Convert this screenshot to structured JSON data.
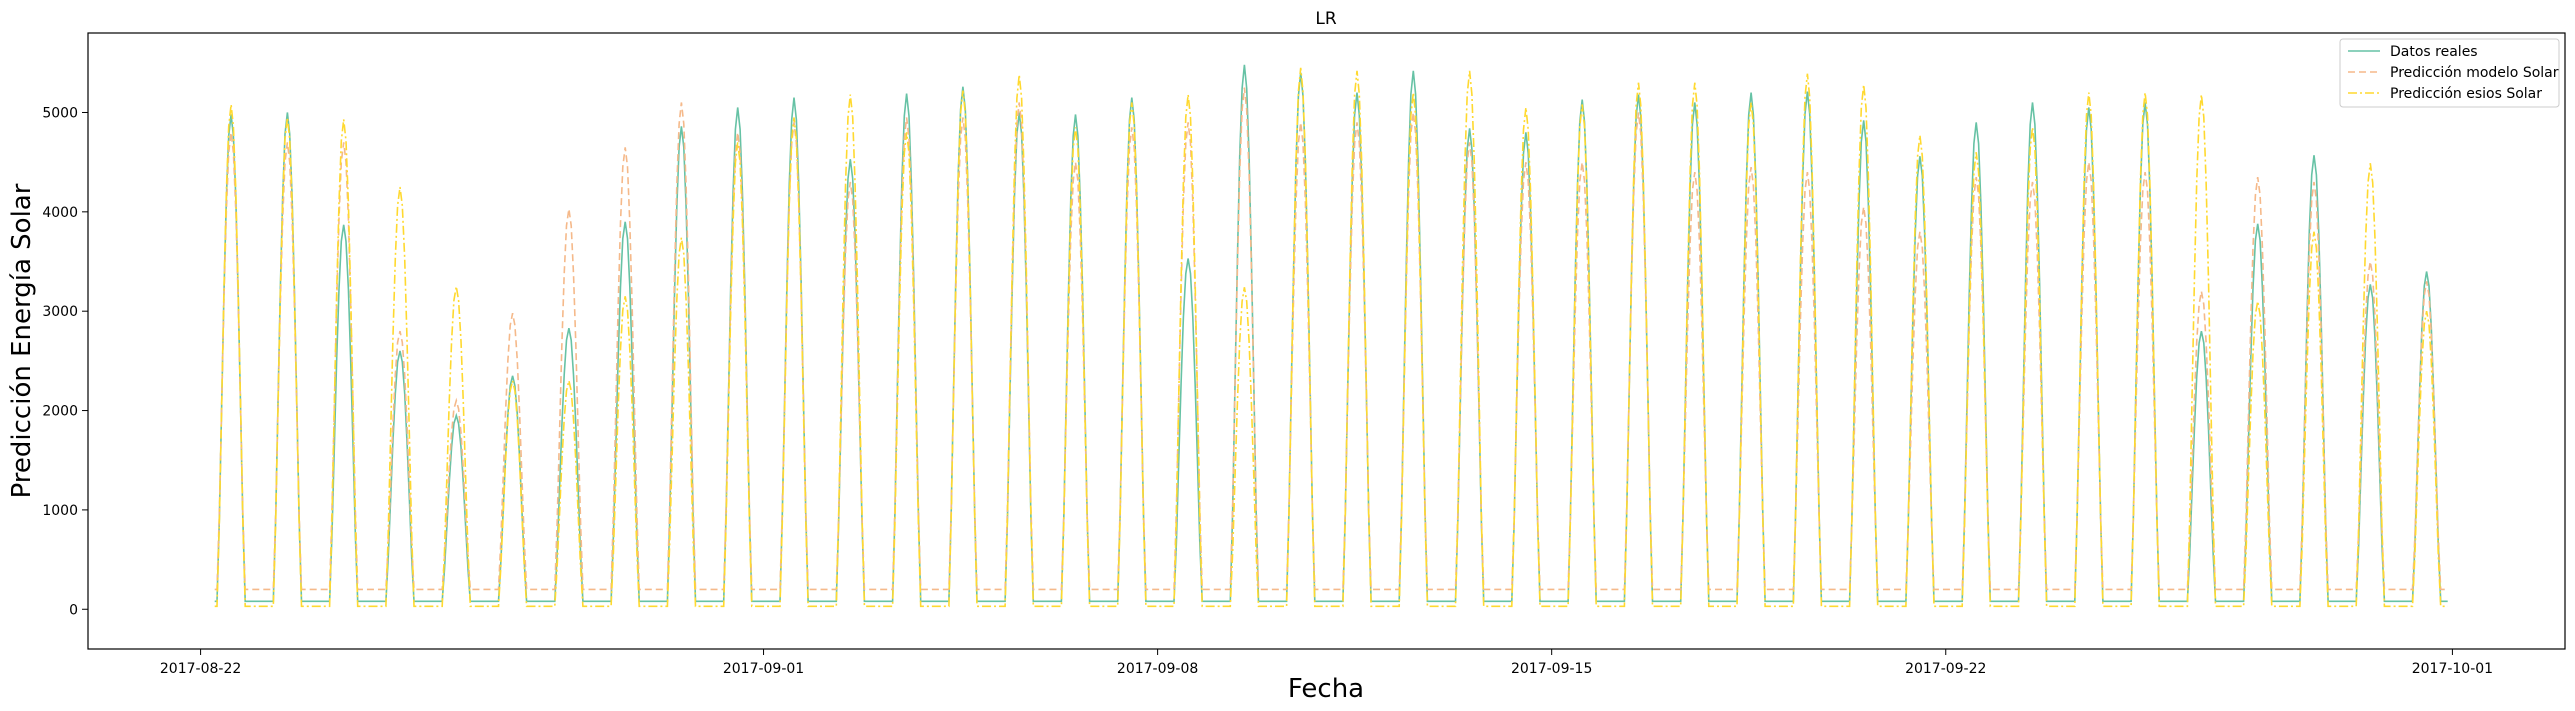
{
  "chart_data": {
    "type": "line",
    "title": "LR",
    "xlabel": "Fecha",
    "ylabel": "Predicción Energía Solar",
    "x_range": [
      "2017-08-20",
      "2017-10-03"
    ],
    "ylim": [
      -400,
      5800
    ],
    "x_ticks": [
      "2017-08-22",
      "2017-09-01",
      "2017-09-08",
      "2017-09-15",
      "2017-09-22",
      "2017-10-01"
    ],
    "y_ticks": [
      0,
      1000,
      2000,
      3000,
      4000,
      5000
    ],
    "grid": false,
    "legend_position": "top-right",
    "days": [
      "2017-08-22",
      "2017-08-23",
      "2017-08-24",
      "2017-08-25",
      "2017-08-26",
      "2017-08-27",
      "2017-08-28",
      "2017-08-29",
      "2017-08-30",
      "2017-08-31",
      "2017-09-01",
      "2017-09-02",
      "2017-09-03",
      "2017-09-04",
      "2017-09-05",
      "2017-09-06",
      "2017-09-07",
      "2017-09-08",
      "2017-09-09",
      "2017-09-10",
      "2017-09-11",
      "2017-09-12",
      "2017-09-13",
      "2017-09-14",
      "2017-09-15",
      "2017-09-16",
      "2017-09-17",
      "2017-09-18",
      "2017-09-19",
      "2017-09-20",
      "2017-09-21",
      "2017-09-22",
      "2017-09-23",
      "2017-09-24",
      "2017-09-25",
      "2017-09-26",
      "2017-09-27",
      "2017-09-28",
      "2017-09-29",
      "2017-09-30"
    ],
    "series": [
      {
        "name": "Datos reales",
        "color": "#66c2a5",
        "dash": "solid",
        "night_min": 80,
        "daily_peaks": [
          4980,
          5000,
          3870,
          2600,
          1950,
          2350,
          2830,
          3900,
          4860,
          5050,
          5150,
          4530,
          5190,
          5260,
          5000,
          4980,
          5150,
          3530,
          5480,
          5400,
          5200,
          5420,
          4840,
          4800,
          5130,
          5180,
          5100,
          5200,
          5210,
          4920,
          4560,
          4900,
          5100,
          5050,
          5100,
          2800,
          3880,
          4570,
          3270,
          3400
        ]
      },
      {
        "name": "Predicción modelo Solar",
        "color": "#f5b98a",
        "dash": "dashed",
        "night_min": 200,
        "daily_peaks": [
          4800,
          4700,
          4700,
          2800,
          2100,
          2980,
          4030,
          4650,
          5100,
          4800,
          4900,
          4300,
          4950,
          4950,
          5100,
          4500,
          4850,
          4900,
          5250,
          4900,
          4900,
          5000,
          4700,
          4500,
          4500,
          5000,
          4400,
          4450,
          4400,
          4050,
          3800,
          4350,
          4300,
          4500,
          4400,
          3200,
          4350,
          4300,
          3500,
          3300
        ]
      },
      {
        "name": "Predicción esios Solar",
        "color": "#ffd92f",
        "dash": "dashdot",
        "night_min": 30,
        "daily_peaks": [
          5080,
          4950,
          4930,
          4250,
          3250,
          2300,
          2300,
          3150,
          3740,
          4700,
          4950,
          5180,
          4800,
          5220,
          5380,
          4850,
          5100,
          5180,
          3240,
          5450,
          5420,
          5200,
          5420,
          5050,
          5080,
          5300,
          5300,
          5100,
          5390,
          5280,
          4770,
          4600,
          4850,
          5200,
          5200,
          5180,
          3100,
          3800,
          4490,
          3000
        ]
      }
    ]
  }
}
